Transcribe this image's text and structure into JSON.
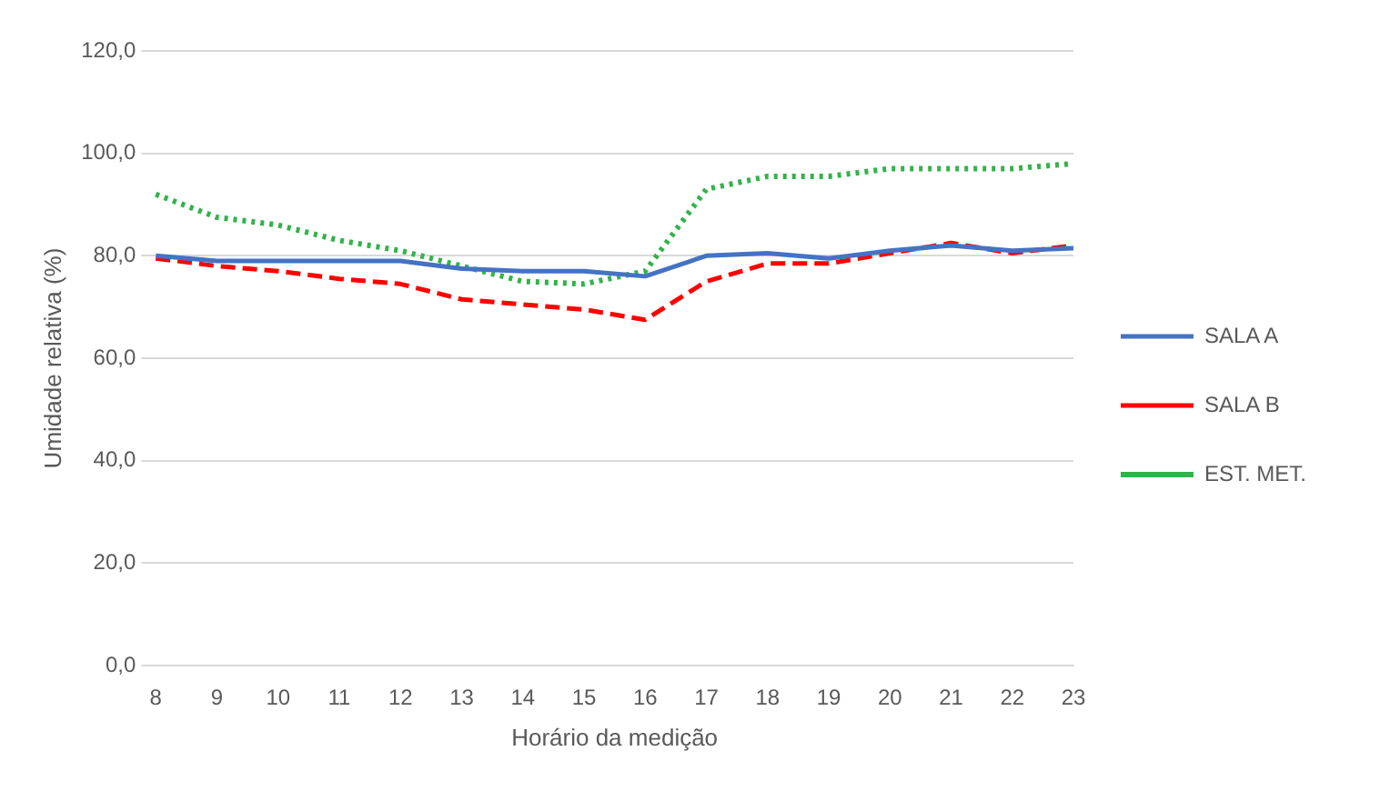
{
  "chart_data": {
    "type": "line",
    "xlabel": "Horário da medição",
    "ylabel": "Umidade relativa (%)",
    "categories": [
      "8",
      "9",
      "10",
      "11",
      "12",
      "13",
      "14",
      "15",
      "16",
      "17",
      "18",
      "19",
      "20",
      "21",
      "22",
      "23"
    ],
    "series": [
      {
        "name": "SALA A",
        "color": "#4472c4",
        "line_style": "solid",
        "values": [
          80,
          79,
          79,
          79,
          79,
          77.5,
          77,
          77,
          76,
          80,
          80.5,
          79.5,
          81,
          82,
          81,
          81.5
        ]
      },
      {
        "name": "SALA B",
        "color": "#ff0000",
        "line_style": "dashed",
        "values": [
          79.5,
          78,
          77,
          75.5,
          74.5,
          71.5,
          70.5,
          69.5,
          67.5,
          75,
          78.5,
          78.5,
          80.5,
          82.5,
          80.5,
          82
        ]
      },
      {
        "name": "EST. MET.",
        "color": "#33b24b",
        "line_style": "dotted",
        "values": [
          92,
          87.5,
          86,
          83,
          81,
          78,
          75,
          74.5,
          77,
          93,
          95.5,
          95.5,
          97,
          97,
          97,
          98
        ]
      }
    ],
    "ylim": [
      0,
      120
    ],
    "yticks": [
      {
        "value": 0,
        "label": "0,0"
      },
      {
        "value": 20,
        "label": "20,0"
      },
      {
        "value": 40,
        "label": "40,0"
      },
      {
        "value": 60,
        "label": "60,0"
      },
      {
        "value": 80,
        "label": "80,0"
      },
      {
        "value": 100,
        "label": "100,0"
      },
      {
        "value": 120,
        "label": "120,0"
      }
    ],
    "grid": "y",
    "legend": "right",
    "marker": "none"
  }
}
